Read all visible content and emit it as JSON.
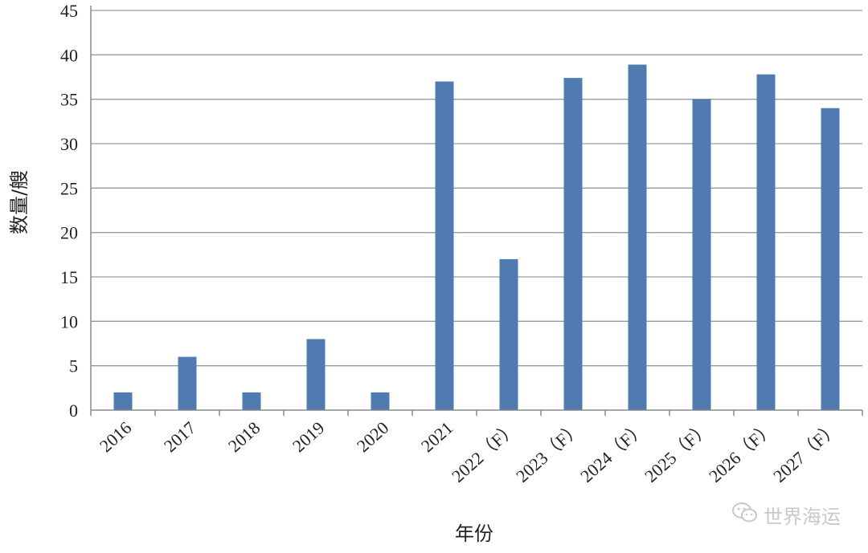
{
  "chart_data": {
    "type": "bar",
    "title": "",
    "xlabel": "年份",
    "ylabel": "数量/艘",
    "ylim": [
      0,
      45
    ],
    "yticks": [
      0,
      5,
      10,
      15,
      20,
      25,
      30,
      35,
      40,
      45
    ],
    "grid": true,
    "legend": "none",
    "categories": [
      "2016",
      "2017",
      "2018",
      "2019",
      "2020",
      "2021",
      "2022（F）",
      "2023（F）",
      "2024（F）",
      "2025（F）",
      "2026（F）",
      "2027（F）"
    ],
    "series": [
      {
        "values": [
          2,
          6,
          2,
          8,
          2,
          37,
          17,
          37.4,
          38.9,
          35,
          37.8,
          34
        ]
      }
    ],
    "colors": {
      "bar": "#4f7bb0",
      "grid": "#9a9a9a",
      "axis": "#8a8a8a"
    }
  },
  "watermark": {
    "text": "世界海运",
    "icon": "wechat-icon"
  }
}
